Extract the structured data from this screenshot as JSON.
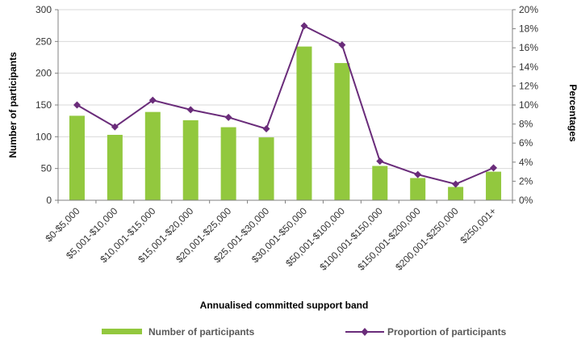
{
  "chart_data": {
    "type": "bar",
    "categories": [
      "$0-$5,000",
      "$5,001-$10,000",
      "$10,001-$15,000",
      "$15,001-$20,000",
      "$20,001-$25,000",
      "$25,001-$30,000",
      "$30,001-$50,000",
      "$50,001-$100,000",
      "$100,001-$150,000",
      "$150,001-$200,000",
      "$200,001-$250,000",
      "$250,001+"
    ],
    "series": [
      {
        "name": "Number of participants",
        "type": "bar",
        "axis": "left",
        "color": "#92c83e",
        "values": [
          133,
          103,
          139,
          126,
          115,
          99,
          242,
          216,
          54,
          35,
          21,
          45
        ]
      },
      {
        "name": "Proportion of participants",
        "type": "line",
        "axis": "right",
        "color": "#6a2c7a",
        "values": [
          0.1,
          0.077,
          0.105,
          0.095,
          0.087,
          0.075,
          0.183,
          0.163,
          0.041,
          0.027,
          0.017,
          0.034
        ]
      }
    ],
    "xlabel": "Annualised committed support band",
    "ylabel": "Number of participants",
    "y2label": "Percentages",
    "ylim": [
      0,
      300
    ],
    "y2lim": [
      0,
      0.2
    ],
    "yticks": [
      "0",
      "50",
      "100",
      "150",
      "200",
      "250",
      "300"
    ],
    "y2ticks": [
      "0%",
      "2%",
      "4%",
      "6%",
      "8%",
      "10%",
      "12%",
      "14%",
      "16%",
      "18%",
      "20%"
    ],
    "grid": true,
    "legend": "bottom"
  }
}
